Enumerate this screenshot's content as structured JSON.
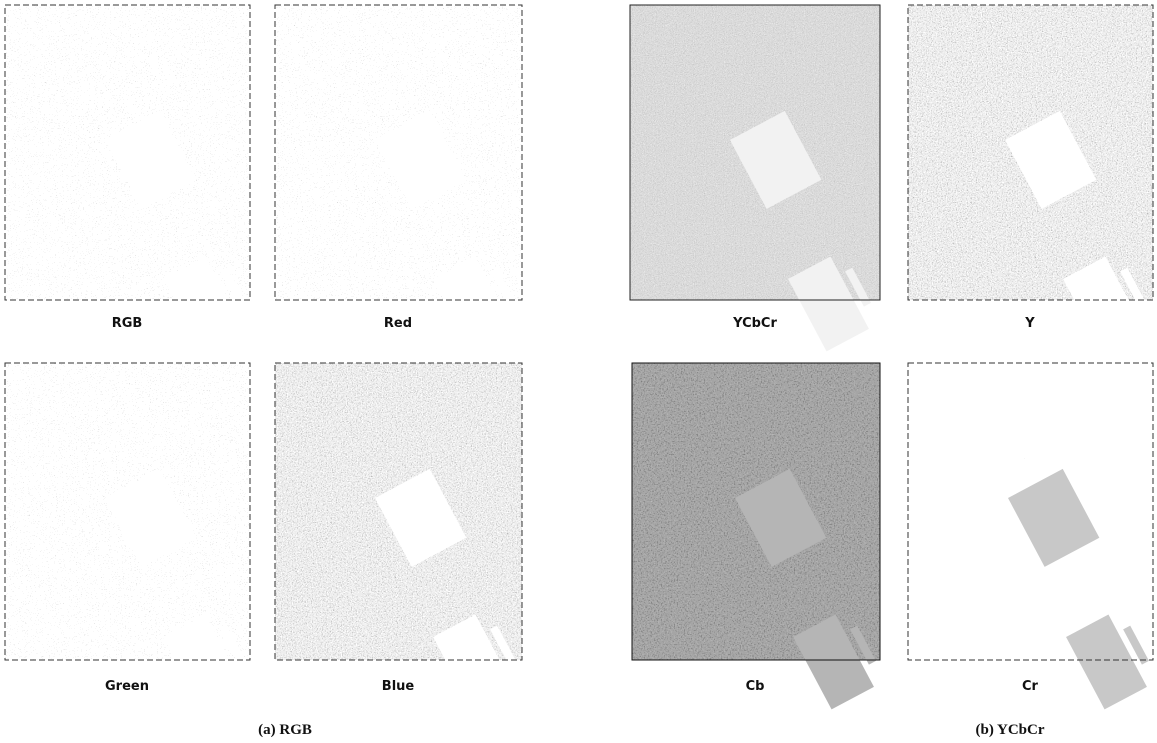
{
  "panels": [
    {
      "label": "RGB"
    },
    {
      "label": "Red"
    },
    {
      "label": "Green"
    },
    {
      "label": "Blue"
    },
    {
      "label": "YCbCr"
    },
    {
      "label": "Y"
    },
    {
      "label": "Cb"
    },
    {
      "label": "Cr"
    }
  ],
  "captions": [
    "(a) RGB",
    "(b) YCbCr"
  ]
}
